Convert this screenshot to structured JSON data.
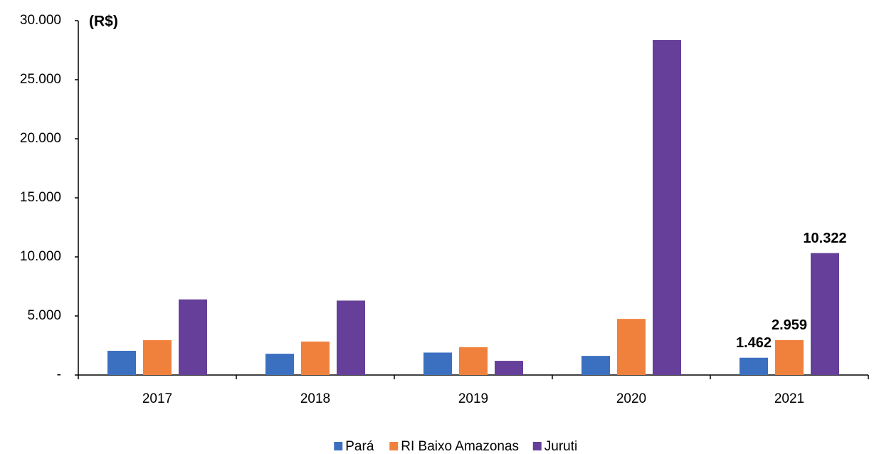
{
  "chart_data": {
    "type": "bar",
    "annotation": "(R$)",
    "categories": [
      "2017",
      "2018",
      "2019",
      "2020",
      "2021"
    ],
    "series": [
      {
        "name": "Pará",
        "color": "#3b70c0",
        "values": [
          2050,
          1800,
          1900,
          1620,
          1462
        ],
        "value_labels": [
          null,
          null,
          null,
          null,
          "1.462"
        ]
      },
      {
        "name": "RI Baixo Amazonas",
        "color": "#f0813c",
        "values": [
          2950,
          2830,
          2350,
          4750,
          2959
        ],
        "value_labels": [
          null,
          null,
          null,
          null,
          "2.959"
        ]
      },
      {
        "name": "Juruti",
        "color": "#653f99",
        "values": [
          6400,
          6300,
          1200,
          28370,
          10322
        ],
        "value_labels": [
          null,
          null,
          null,
          null,
          "10.322"
        ]
      }
    ],
    "ylim": [
      0,
      30000
    ],
    "yticks": [
      {
        "value": 0,
        "label": "-"
      },
      {
        "value": 5000,
        "label": "5.000"
      },
      {
        "value": 10000,
        "label": "10.000"
      },
      {
        "value": 15000,
        "label": "15.000"
      },
      {
        "value": 20000,
        "label": "20.000"
      },
      {
        "value": 25000,
        "label": "25.000"
      },
      {
        "value": 30000,
        "label": "30.000"
      }
    ],
    "legend": "bottom"
  }
}
